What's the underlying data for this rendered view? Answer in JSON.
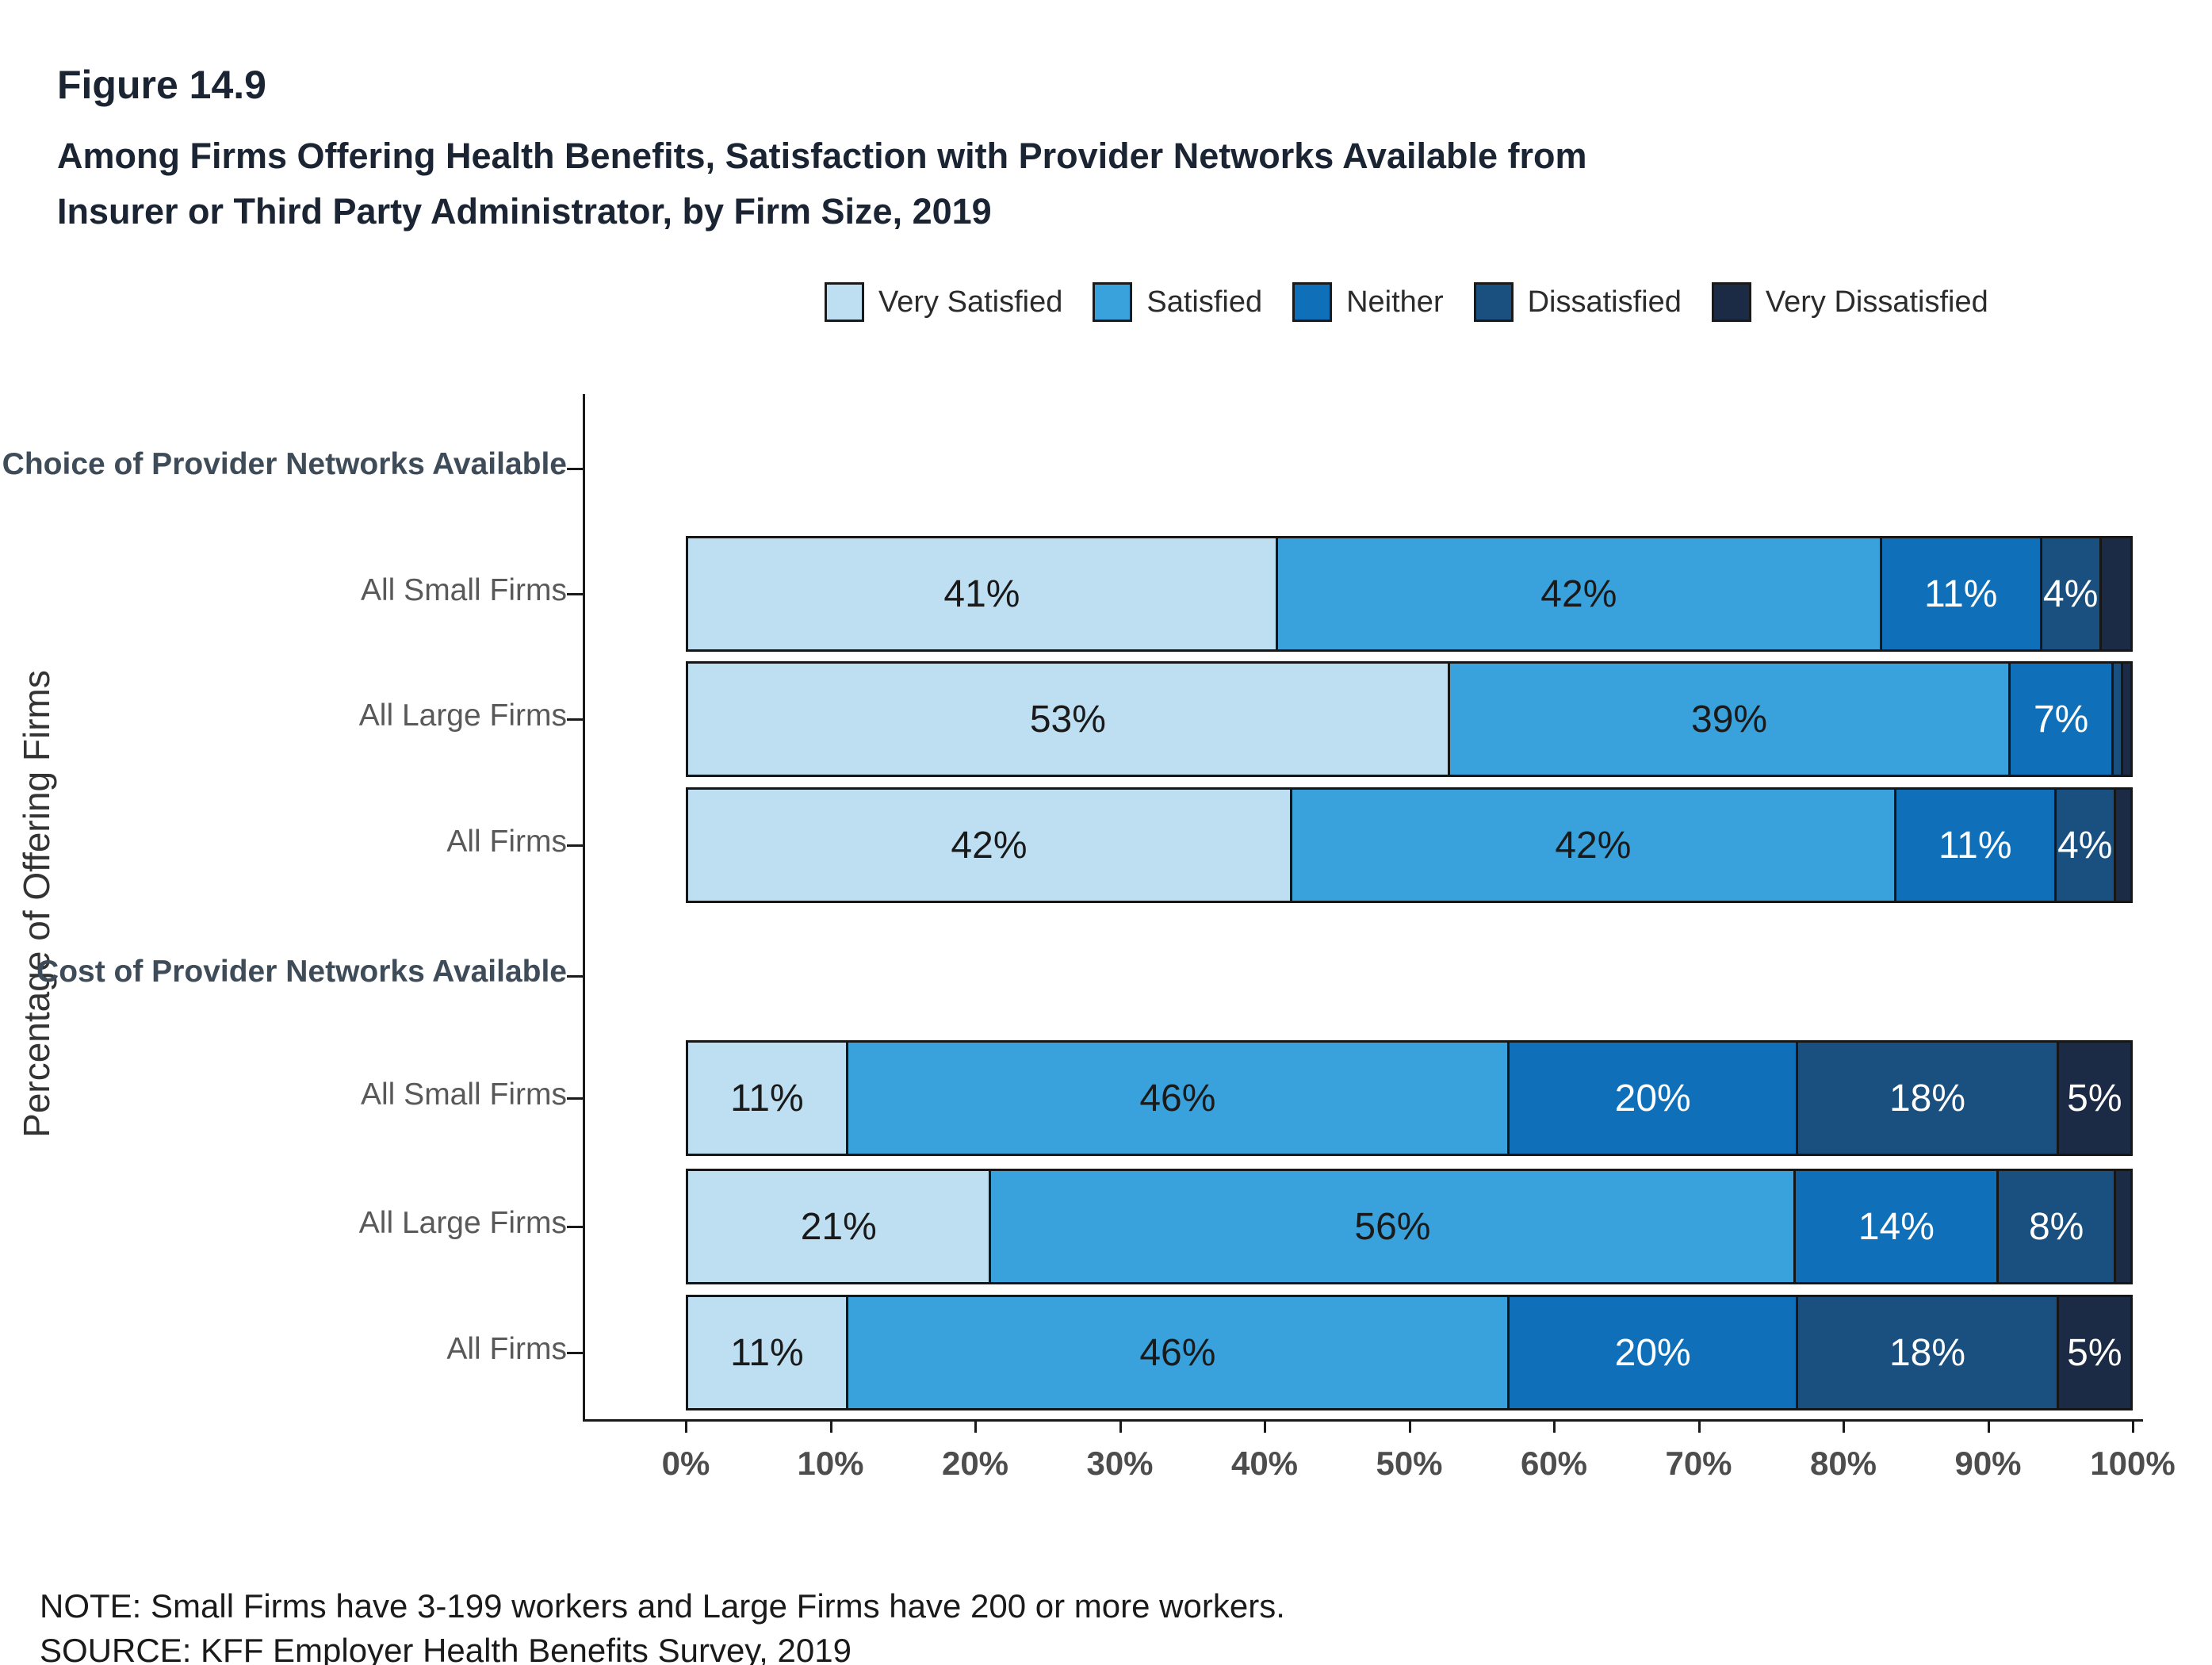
{
  "figure": {
    "number": "Figure 14.9",
    "title_line1": "Among Firms Offering Health Benefits, Satisfaction with Provider Networks Available from",
    "title_line2": "Insurer or Third Party Administrator, by Firm Size, 2019"
  },
  "y_axis_label": "Percentage of Offering Firms",
  "note": "NOTE: Small Firms have 3-199 workers and Large Firms have 200 or more workers.",
  "source": "SOURCE: KFF Employer Health Benefits Survey, 2019",
  "chart_data": {
    "type": "bar",
    "orientation": "horizontal",
    "stacked": true,
    "xlim": [
      0,
      100
    ],
    "grid": false,
    "legend_position": "top",
    "x_tick_labels": [
      "0%",
      "10%",
      "20%",
      "30%",
      "40%",
      "50%",
      "60%",
      "70%",
      "80%",
      "90%",
      "100%"
    ],
    "series": [
      {
        "name": "Very Satisfied",
        "color": "#BEDFF2",
        "text_color": "#1A1A1A"
      },
      {
        "name": "Satisfied",
        "color": "#39A2DC",
        "text_color": "#1A1A1A"
      },
      {
        "name": "Neither",
        "color": "#0F6FB9",
        "text_color": "#FFFFFF"
      },
      {
        "name": "Dissatisfied",
        "color": "#19507F",
        "text_color": "#FFFFFF"
      },
      {
        "name": "Very Dissatisfied",
        "color": "#1C2B45",
        "text_color": "#FFFFFF"
      }
    ],
    "groups": [
      {
        "header": "Choice of Provider Networks Available",
        "rows": [
          {
            "label": "All Small Firms",
            "values": [
              41,
              42,
              11,
              4,
              2
            ],
            "seg_labels": [
              "41%",
              "42%",
              "11%",
              "4%",
              ""
            ]
          },
          {
            "label": "All Large Firms",
            "values": [
              53,
              39,
              7,
              0.5,
              0.5
            ],
            "seg_labels": [
              "53%",
              "39%",
              "7%",
              "",
              ""
            ]
          },
          {
            "label": "All Firms",
            "values": [
              42,
              42,
              11,
              4,
              1
            ],
            "seg_labels": [
              "42%",
              "42%",
              "11%",
              "4%",
              ""
            ]
          }
        ]
      },
      {
        "header": "Cost of Provider Networks Available",
        "rows": [
          {
            "label": "All Small Firms",
            "values": [
              11,
              46,
              20,
              18,
              5
            ],
            "seg_labels": [
              "11%",
              "46%",
              "20%",
              "18%",
              "5%"
            ]
          },
          {
            "label": "All Large Firms",
            "values": [
              21,
              56,
              14,
              8,
              1
            ],
            "seg_labels": [
              "21%",
              "56%",
              "14%",
              "8%",
              ""
            ]
          },
          {
            "label": "All Firms",
            "values": [
              11,
              46,
              20,
              18,
              5
            ],
            "seg_labels": [
              "11%",
              "46%",
              "20%",
              "18%",
              "5%"
            ]
          }
        ]
      }
    ]
  }
}
